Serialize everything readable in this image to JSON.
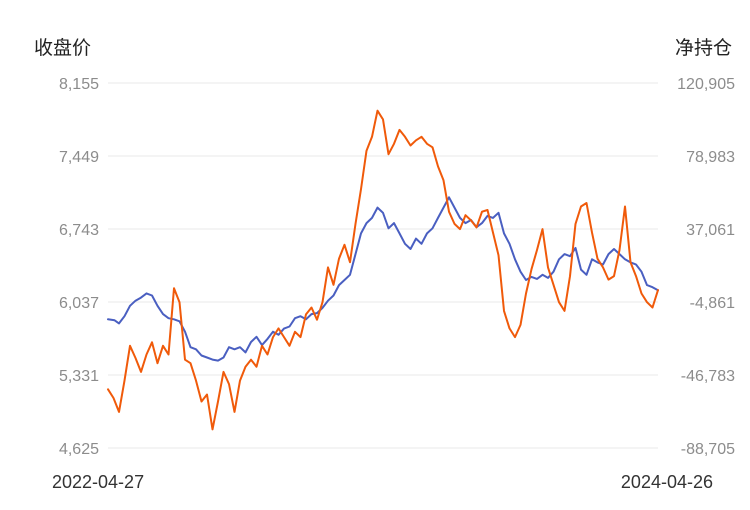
{
  "chart_data": {
    "type": "line",
    "left_axis": {
      "title": "收盘价",
      "ticks": [
        "8,155",
        "7,449",
        "6,743",
        "6,037",
        "5,331",
        "4,625"
      ],
      "range": [
        4625,
        8155
      ]
    },
    "right_axis": {
      "title": "净持仓",
      "ticks": [
        "120,905",
        "78,983",
        "37,061",
        "-4,861",
        "-46,783",
        "-88,705"
      ],
      "range": [
        -88705,
        120905
      ]
    },
    "x_labels": [
      "2022-04-27",
      "2024-04-26"
    ],
    "x_range": [
      0,
      100
    ],
    "grid": true,
    "series": [
      {
        "axis": "left",
        "color": "#4a5fc1",
        "x": [
          0,
          1.2,
          2,
          3,
          4,
          5,
          6,
          7,
          8,
          9,
          10,
          11,
          12,
          13,
          14,
          15,
          16,
          17,
          18,
          19,
          20,
          21,
          22,
          23,
          24,
          25,
          26,
          27,
          28,
          29,
          30,
          31,
          32,
          33,
          34,
          35,
          36,
          37,
          38,
          39,
          40,
          41,
          42,
          43,
          44,
          45,
          46,
          47,
          48,
          49,
          50,
          51,
          52,
          53,
          54,
          55,
          56,
          57,
          58,
          59,
          60,
          61,
          62,
          63,
          64,
          65,
          66,
          67,
          68,
          69,
          70,
          71,
          72,
          73,
          74,
          75,
          76,
          77,
          78,
          79,
          80,
          81,
          82,
          83,
          84,
          85,
          86,
          87,
          88,
          89,
          90,
          91,
          92,
          93,
          94,
          95,
          96,
          97,
          98,
          99,
          100
        ],
        "y": [
          5870,
          5860,
          5830,
          5900,
          6000,
          6050,
          6080,
          6120,
          6100,
          6000,
          5920,
          5880,
          5870,
          5850,
          5750,
          5600,
          5580,
          5520,
          5500,
          5480,
          5470,
          5500,
          5600,
          5580,
          5600,
          5550,
          5650,
          5700,
          5620,
          5680,
          5750,
          5720,
          5780,
          5800,
          5880,
          5900,
          5870,
          5920,
          5930,
          5980,
          6050,
          6100,
          6200,
          6250,
          6300,
          6500,
          6700,
          6800,
          6850,
          6950,
          6900,
          6750,
          6800,
          6700,
          6600,
          6550,
          6650,
          6600,
          6700,
          6750,
          6850,
          6950,
          7050,
          6950,
          6850,
          6800,
          6830,
          6760,
          6800,
          6870,
          6850,
          6900,
          6700,
          6600,
          6450,
          6330,
          6250,
          6280,
          6260,
          6300,
          6270,
          6330,
          6450,
          6500,
          6480,
          6560,
          6350,
          6300,
          6450,
          6420,
          6400,
          6500,
          6550,
          6500,
          6450,
          6420,
          6400,
          6330,
          6200,
          6180,
          6150
        ]
      },
      {
        "axis": "right",
        "color": "#f05a0a",
        "x": [
          0,
          1,
          2,
          3,
          4,
          5,
          6,
          7,
          8,
          9,
          10,
          11,
          12,
          13,
          14,
          15,
          16,
          17,
          18,
          19,
          20,
          21,
          22,
          23,
          24,
          25,
          26,
          27,
          28,
          29,
          30,
          31,
          32,
          33,
          34,
          35,
          36,
          37,
          38,
          39,
          40,
          41,
          42,
          43,
          44,
          45,
          46,
          47,
          48,
          49,
          50,
          51,
          52,
          53,
          54,
          55,
          56,
          57,
          58,
          59,
          60,
          61,
          62,
          63,
          64,
          65,
          66,
          67,
          68,
          69,
          70,
          71,
          72,
          73,
          74,
          75,
          76,
          77,
          78,
          79,
          80,
          81,
          82,
          83,
          84,
          85,
          86,
          87,
          88,
          89,
          90,
          91,
          92,
          93,
          94,
          95,
          96,
          97,
          98,
          99,
          100
        ],
        "y": [
          -55000,
          -60000,
          -68000,
          -50000,
          -30000,
          -37000,
          -45000,
          -35000,
          -28000,
          -40000,
          -30000,
          -35000,
          3000,
          -5000,
          -38000,
          -40000,
          -50000,
          -62000,
          -58000,
          -78000,
          -62000,
          -45000,
          -52000,
          -68000,
          -50000,
          -42000,
          -38000,
          -42000,
          -30000,
          -35000,
          -25000,
          -20000,
          -25000,
          -30000,
          -22000,
          -25000,
          -12000,
          -8000,
          -15000,
          -5000,
          15000,
          5000,
          20000,
          28000,
          18000,
          40000,
          60000,
          82000,
          90000,
          105000,
          100000,
          80000,
          86000,
          94000,
          90000,
          85000,
          88000,
          90000,
          86000,
          84000,
          73000,
          65000,
          47000,
          40000,
          37000,
          45000,
          42000,
          38000,
          47000,
          48000,
          35000,
          22000,
          -10000,
          -20000,
          -25000,
          -18000,
          0,
          14000,
          25000,
          37000,
          15000,
          5000,
          -5000,
          -10000,
          10000,
          40000,
          50000,
          52000,
          35000,
          20000,
          15000,
          8000,
          10000,
          25000,
          50000,
          18000,
          10000,
          0,
          -5000,
          -8000,
          2000
        ]
      }
    ]
  }
}
